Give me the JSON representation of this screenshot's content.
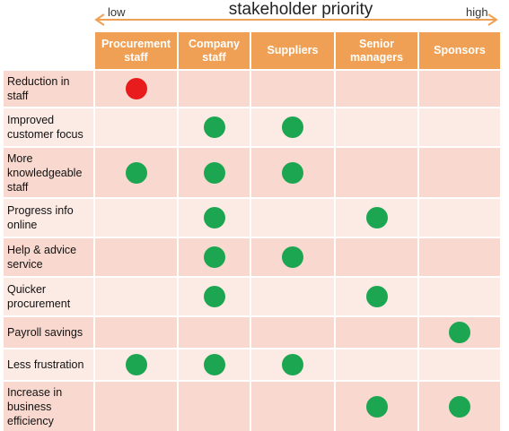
{
  "axis": {
    "low": "low",
    "high": "high",
    "title": "stakeholder priority"
  },
  "colors": {
    "header": "#f0a054",
    "positive": "#1ca651",
    "negative": "#e81c1c",
    "row_dark": "#f9d9cf",
    "row_light": "#fcebe5"
  },
  "columns": [
    "Procurement\nstaff",
    "Company\nstaff",
    "Suppliers",
    "Senior\nmanagers",
    "Sponsors"
  ],
  "rows": [
    {
      "label": "Reduction in\nstaff",
      "marks": [
        "negative",
        null,
        null,
        null,
        null
      ]
    },
    {
      "label": "Improved\ncustomer focus",
      "marks": [
        null,
        "positive",
        "positive",
        null,
        null
      ]
    },
    {
      "label": "More\nknowledgeable\nstaff",
      "marks": [
        "positive",
        "positive",
        "positive",
        null,
        null
      ]
    },
    {
      "label": "Progress info\nonline",
      "marks": [
        null,
        "positive",
        null,
        "positive",
        null
      ]
    },
    {
      "label": "Help & advice\nservice",
      "marks": [
        null,
        "positive",
        "positive",
        null,
        null
      ]
    },
    {
      "label": "Quicker\nprocurement",
      "marks": [
        null,
        "positive",
        null,
        "positive",
        null
      ]
    },
    {
      "label": "Payroll savings",
      "marks": [
        null,
        null,
        null,
        null,
        "positive"
      ]
    },
    {
      "label": "Less frustration",
      "marks": [
        "positive",
        "positive",
        "positive",
        null,
        null
      ]
    },
    {
      "label": "Increase in\nbusiness\nefficiency",
      "marks": [
        null,
        null,
        null,
        "positive",
        "positive"
      ]
    }
  ]
}
